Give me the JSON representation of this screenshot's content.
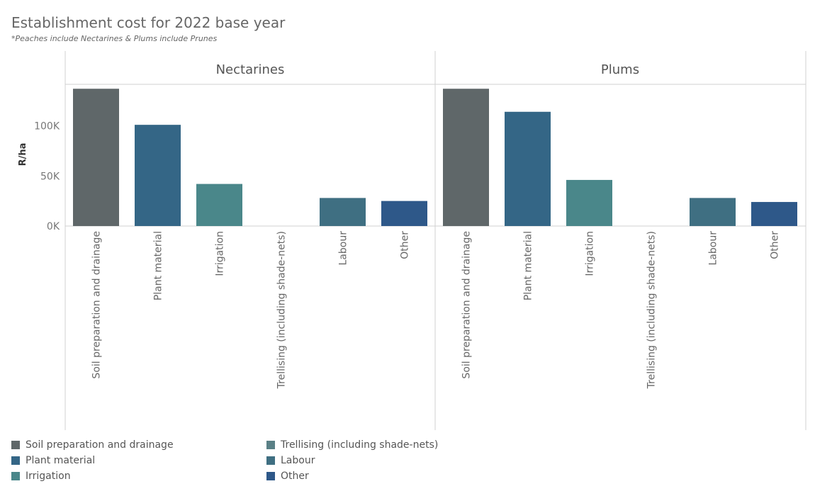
{
  "title": "Establishment cost for 2022 base year",
  "subtitle": "*Peaches include Nectarines & Plums include Prunes",
  "chart_data": {
    "type": "bar",
    "ylabel": "R/ha",
    "ylim": [
      0,
      140000
    ],
    "yticks": [
      0,
      50000,
      100000
    ],
    "ytick_labels": [
      "0K",
      "50K",
      "100K"
    ],
    "grid": false,
    "legend_position": "bottom-left",
    "categories": [
      "Soil preparation and drainage",
      "Plant material",
      "Irrigation",
      "Trellising (including shade-nets)",
      "Labour",
      "Other"
    ],
    "colors": [
      "#5f6769",
      "#346686",
      "#4a878a",
      "#5a8086",
      "#3f6f82",
      "#2e5889"
    ],
    "panels": [
      {
        "name": "Nectarines",
        "values": [
          137000,
          101000,
          42000,
          0,
          28000,
          25000
        ]
      },
      {
        "name": "Plums",
        "values": [
          137000,
          114000,
          46000,
          0,
          28000,
          24000
        ]
      }
    ]
  },
  "legend": [
    {
      "label": "Soil preparation and drainage",
      "color": "#5f6769"
    },
    {
      "label": "Plant material",
      "color": "#346686"
    },
    {
      "label": "Irrigation",
      "color": "#4a878a"
    },
    {
      "label": "Trellising (including shade-nets)",
      "color": "#5a8086"
    },
    {
      "label": "Labour",
      "color": "#3f6f82"
    },
    {
      "label": "Other",
      "color": "#2e5889"
    }
  ]
}
